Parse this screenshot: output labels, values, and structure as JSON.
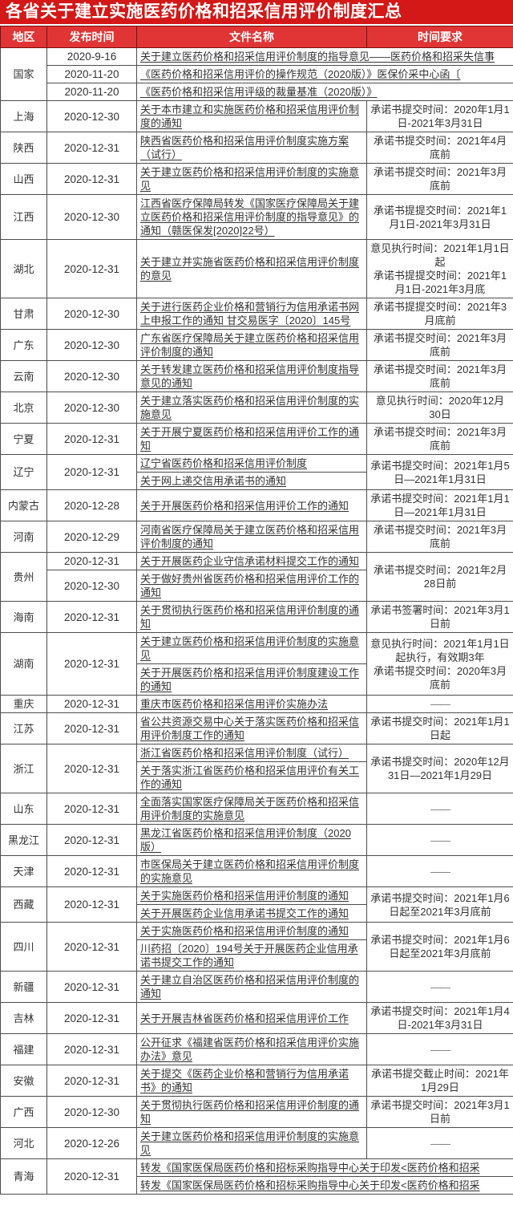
{
  "title": "各省关于建立实施医药价格和招采信用评价制度汇总",
  "colors": {
    "title_bg": "#d41717",
    "header_bg": "#e13434",
    "border": "#4d4d4d",
    "text": "#333333",
    "dash": "#777777"
  },
  "table": {
    "columns": {
      "region": "地区",
      "date": "发布时间",
      "doc": "文件名称",
      "time": "时间要求"
    },
    "dash": "——",
    "groups": [
      {
        "region": "国家",
        "rows": [
          {
            "date": "2020-9-16",
            "doc": "关于建立医药价格和招采信用评价制度的指导意见——医药价格和招采失信事",
            "wide": true
          },
          {
            "date": "2020-11-20",
            "doc": "《医药价格和招采信用评价的操作规范（2020版）》医保价采中心函〔",
            "wide": true
          },
          {
            "date": "2020-11-20",
            "doc": "《医药价格和招采信用评级的裁量基准（2020版）》",
            "wide": true
          }
        ]
      },
      {
        "region": "上海",
        "date": "2020-12-30",
        "rows": [
          {
            "doc": "关于本市建立和实施医药价格和招采信用评价制度的通知"
          }
        ],
        "time": [
          "承诺书提交时间：2020年1月1日-2021年3月31日"
        ]
      },
      {
        "region": "陕西",
        "date": "2020-12-31",
        "rows": [
          {
            "doc": "陕西省医药价格和招采信用评价制度实施方案（试行）"
          }
        ],
        "time": [
          "承诺书提交时间：2021年4月底前"
        ]
      },
      {
        "region": "山西",
        "date": "2020-12-31",
        "rows": [
          {
            "doc": "关于建立医药价格和招采信用评价制度的实施意见"
          }
        ],
        "time": [
          "承诺书提交时间：2021年3月底前"
        ]
      },
      {
        "region": "江西",
        "date": "2020-12-30",
        "rows": [
          {
            "doc": "江西省医疗保障局转发《国家医疗保障局关于建立医药价格和招采信用评价制度的指导意见》的通知（赣医保发[2020]22号）"
          }
        ],
        "time": [
          "承诺书提提交时间：2021年1月1日-2021年3月31日"
        ]
      },
      {
        "region": "湖北",
        "date": "2020-12-31",
        "rows": [
          {
            "doc": "关于建立并实施省医药价格和招采信用评价制度的意见"
          }
        ],
        "time": [
          "意见执行时间：2021年1月1日起",
          "承诺书提提交时间：2021年1月1日-2021年3月底"
        ]
      },
      {
        "region": "甘肃",
        "date": "2020-12-30",
        "rows": [
          {
            "doc": "关于进行医药企业价格和营销行为信用承诺书网上申报工作的通知 甘交易医字〔2020〕145号"
          }
        ],
        "time": [
          "承诺书提提交时间：2021年3月底前"
        ]
      },
      {
        "region": "广东",
        "date": "2020-12-30",
        "rows": [
          {
            "doc": "广东省医疗保障局关于建立医药价格和招采信用评价制度的通知"
          }
        ],
        "time": [
          "承诺书提交时间：2021年3月底前"
        ]
      },
      {
        "region": "云南",
        "date": "2020-12-30",
        "rows": [
          {
            "doc": "关于转发建立医药价格和招采信用评价制度指导意见的通知"
          }
        ],
        "time": [
          "承诺书提交时间：2021年3月底前"
        ]
      },
      {
        "region": "北京",
        "date": "2020-12-30",
        "rows": [
          {
            "doc": "关于建立落实医药价格和招采信用评价制度的实施意见"
          }
        ],
        "time": [
          "意见执行时间：2020年12月30日"
        ]
      },
      {
        "region": "宁夏",
        "date": "2020-12-31",
        "rows": [
          {
            "doc": "关于开展宁夏医药价格和招采信用评价工作的通知"
          }
        ],
        "time": [
          "承诺书提交时间：2021年3月底前"
        ]
      },
      {
        "region": "辽宁",
        "date": "2020-12-31",
        "rows": [
          {
            "doc": "辽宁省医药价格和招采信用评价制度"
          },
          {
            "doc": "关于网上递交信用承诺书的通知"
          }
        ],
        "time": [
          "承诺书提交时间：2021年1月5日—2021年1月31日"
        ]
      },
      {
        "region": "内蒙古",
        "date": "2020-12-28",
        "rows": [
          {
            "doc": "关于开展医药价格和招采信用评价工作的通知"
          }
        ],
        "time": [
          "承诺书提交时间：2021年1月1日—2021年1月31日"
        ]
      },
      {
        "region": "河南",
        "date": "2020-12-29",
        "rows": [
          {
            "doc": "河南省医疗保障局关于建立医药价格和招采信用评价制度的通知"
          }
        ],
        "time": [
          "承诺书提交时间：2021年3月底前"
        ]
      },
      {
        "region": "贵州",
        "rows": [
          {
            "date": "2020-12-31",
            "doc": "关于开展医药企业守信承诺材料提交工作的通知"
          },
          {
            "date": "2020-12-30",
            "doc": "关于做好贵州省医药价格和招采信用评价工作的通知"
          }
        ],
        "time": [
          "承诺书提交时间：2021年2月28日前"
        ]
      },
      {
        "region": "海南",
        "date": "2020-12-31",
        "rows": [
          {
            "doc": "关于贯彻执行医药价格和招采信用评价制度的通知"
          }
        ],
        "time": [
          "承诺书签署时间：2021年3月1日前"
        ]
      },
      {
        "region": "湖南",
        "date": "2020-12-31",
        "rows": [
          {
            "doc": "关于建立医药价格和招采信用评价制度的实施意见"
          },
          {
            "doc": "关于开展医药价格和招采信用评价制度建设工作的通知"
          }
        ],
        "time": [
          "意见执行时间：2021年1月1日起执行，有效期3年",
          "承诺书提交时间：2020年3月底前"
        ]
      },
      {
        "region": "重庆",
        "date": "2020-12-31",
        "rows": [
          {
            "doc": "重庆市医药价格和招采信用评价实施办法"
          }
        ],
        "dash": true
      },
      {
        "region": "江苏",
        "date": "2020-12-31",
        "rows": [
          {
            "doc": "省公共资源交易中心关于落实医药价格和招采信用评价制度工作的通知"
          }
        ],
        "time": [
          "承诺书提交时间：2021年1月1日起"
        ]
      },
      {
        "region": "浙江",
        "date": "2020-12-31",
        "rows": [
          {
            "doc": "浙江省医药价格和招采信用评价制度（试行）"
          },
          {
            "doc": "关于落实浙江省医药价格和招采信用评价有关工作的通知"
          }
        ],
        "time": [
          "承诺书提交时间：2020年12月31日—2021年1月29日"
        ]
      },
      {
        "region": "山东",
        "date": "2020-12-31",
        "rows": [
          {
            "doc": "全面落实国家医疗保障局关于医药价格和招采信用评价制度的实施意见"
          }
        ],
        "dash": true
      },
      {
        "region": "黑龙江",
        "date": "2020-12-31",
        "rows": [
          {
            "doc": "黑龙江省医药价格和招采信用评价制度（2020版）"
          }
        ],
        "dash": true
      },
      {
        "region": "天津",
        "date": "2020-12-31",
        "rows": [
          {
            "doc": "市医保局关于建立医药价格和招采信用评价制度的实施意见"
          }
        ],
        "dash": true
      },
      {
        "region": "西藏",
        "date": "2020-12-31",
        "rows": [
          {
            "doc": "关于实施医药价格和招采信用评价制度的通知"
          },
          {
            "doc": "关于开展医药企业信用承诺书提交工作的通知"
          }
        ],
        "time": [
          "承诺书提交时间：2021年1月6日起至2021年3月底前"
        ]
      },
      {
        "region": "四川",
        "date": "2020-12-31",
        "rows": [
          {
            "doc": "关于实施医药价格和招采信用评价制度的通知"
          },
          {
            "doc": "川药招〔2020〕194号关于开展医药企业信用承诺书提交工作的通知"
          }
        ],
        "time": [
          "承诺书提交时间：2021年1月6日起至2021年3月底前"
        ]
      },
      {
        "region": "新疆",
        "date": "2020-12-31",
        "rows": [
          {
            "doc": "关于建立自治区医药价格和招采信用评价制度的通知"
          }
        ],
        "dash": true
      },
      {
        "region": "吉林",
        "date": "2020-12-31",
        "rows": [
          {
            "doc": "关于开展吉林省医药价格和招采信用评价工作"
          }
        ],
        "time": [
          "承诺书提交时间：2021年1月4日-2021年3月31日"
        ]
      },
      {
        "region": "福建",
        "date": "2020-12-31",
        "rows": [
          {
            "doc": "公开征求《福建省医药价格和招采信用评价实施办法》意见"
          }
        ],
        "dash": true
      },
      {
        "region": "安徽",
        "date": "2020-12-31",
        "rows": [
          {
            "doc": "关于提交《医药企业价格和营销行为信用承诺书》的通知"
          }
        ],
        "time": [
          "承诺书提交截止时间：2021年1月29日"
        ]
      },
      {
        "region": "广西",
        "date": "2020-12-30",
        "rows": [
          {
            "doc": "关于贯彻执行医药价格和招采信用评价制度的通知"
          }
        ],
        "time": [
          "承诺书提交时间：2021年3月1日前"
        ]
      },
      {
        "region": "河北",
        "date": "2020-12-26",
        "rows": [
          {
            "doc": "关于建立医药价格和招采信用评价制度的实施意见"
          }
        ],
        "dash": true
      },
      {
        "region": "青海",
        "date": "2020-12-31",
        "rows": [
          {
            "doc": "转发《国家医保局医药价格和招标采购指导中心关于印发<医药价格和招采",
            "wide": true
          },
          {
            "doc": "转发《国家医保局医药价格和招标采购指导中心关于印发<医药价格和招采",
            "wide": true
          }
        ]
      }
    ]
  }
}
